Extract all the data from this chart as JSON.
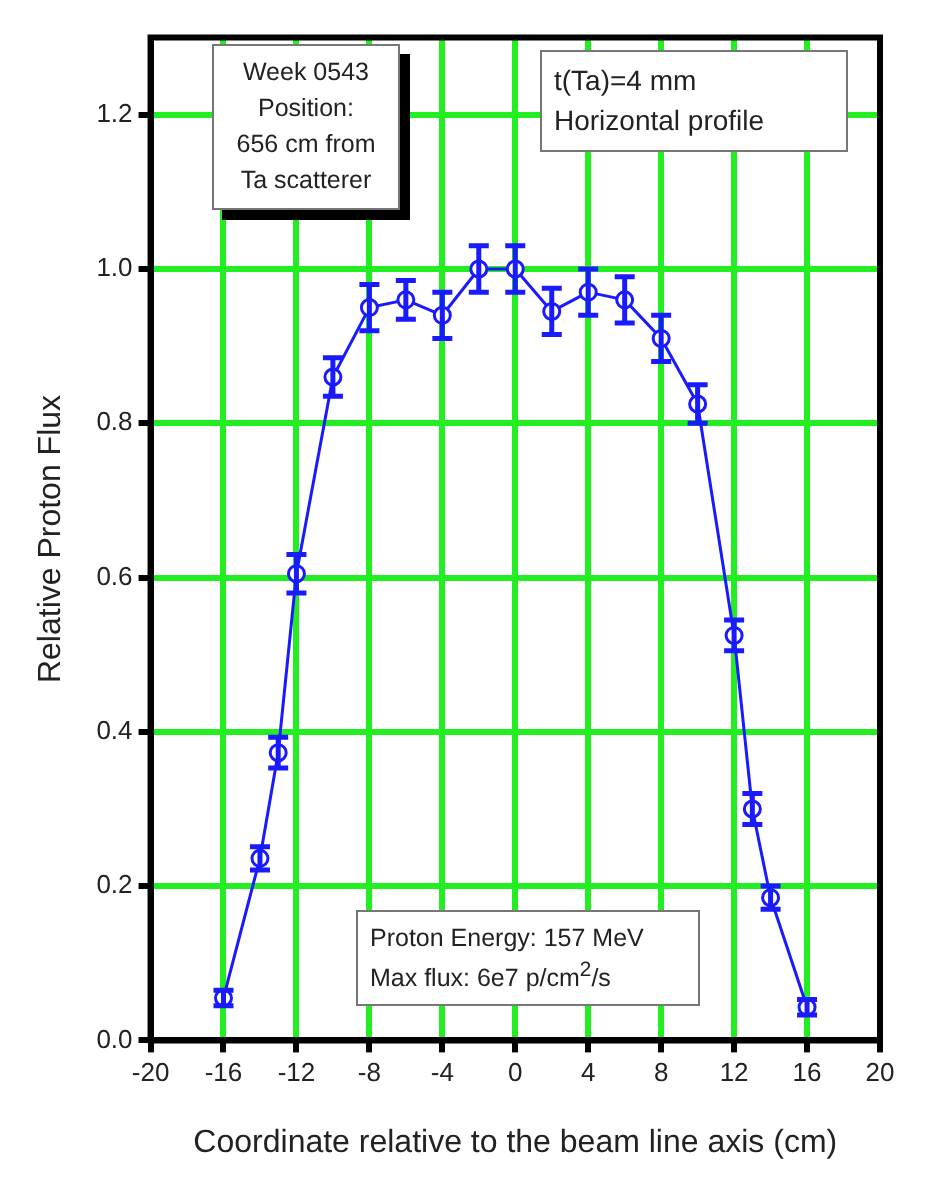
{
  "chart_data": {
    "type": "line",
    "xlabel": "Coordinate relative to the beam line axis (cm)",
    "ylabel": "Relative Proton Flux",
    "annotations": [
      "Week 0543\nPosition:\n656 cm from\nTa scatterer",
      "t(Ta)=4 mm\nHorizontal profile",
      "Proton Energy: 157 MeV\nMax flux: 6e7 p/cm$^{2}$/s"
    ],
    "x": [
      -16,
      -14,
      -13,
      -12,
      -10,
      -8,
      -6,
      -4,
      -2,
      0,
      2,
      4,
      6,
      8,
      10,
      12,
      13,
      14,
      16
    ],
    "series": [
      {
        "color": "#1a1aff",
        "values": [
          0.055,
          0.236,
          0.373,
          0.605,
          0.86,
          0.95,
          0.96,
          0.94,
          1.0,
          1.0,
          0.945,
          0.97,
          0.96,
          0.91,
          0.825,
          0.525,
          0.3,
          0.185,
          0.043
        ],
        "errors": [
          0.01,
          0.015,
          0.02,
          0.025,
          0.025,
          0.03,
          0.025,
          0.03,
          0.03,
          0.03,
          0.03,
          0.03,
          0.03,
          0.03,
          0.025,
          0.02,
          0.02,
          0.015,
          0.01
        ]
      }
    ],
    "xlim": [
      -20,
      20
    ],
    "xticks": [
      -20,
      -16,
      -12,
      -8,
      -4,
      0,
      4,
      8,
      12,
      16,
      20
    ],
    "ylim": [
      0,
      1.3
    ],
    "yticks": [
      {
        "value": 0,
        "label": "0.0"
      },
      0.2,
      0.4,
      0.6,
      0.8,
      {
        "value": 1,
        "label": "1.0"
      },
      1.2
    ],
    "grid": true,
    "legend": false,
    "marker": "circle",
    "line_style": "solid"
  }
}
